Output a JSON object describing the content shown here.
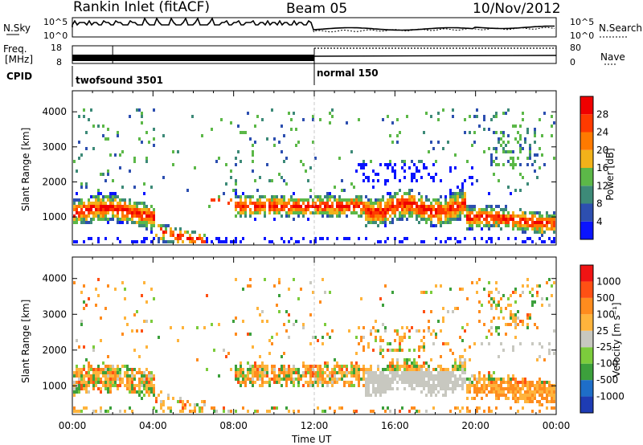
{
  "header": {
    "radar": "Rankin Inlet (fitACF)",
    "beam": "Beam 05",
    "date": "10/Nov/2012"
  },
  "top_panels": {
    "nsky_label": "N.Sky",
    "nsearch_label": "N.Search",
    "n_ticks_left": [
      "10^5",
      "10^0"
    ],
    "n_ticks_right": [
      "10^5",
      "10^0"
    ],
    "freq_label": "Freq.",
    "freq_unit": "[MHz]",
    "freq_ticks": [
      "18",
      "8"
    ],
    "nave_label": "Nave",
    "nave_ticks": [
      "80",
      "0"
    ],
    "cpid_label": "CPID",
    "cpid_modes": [
      "twofsound 3501",
      "normal 150"
    ]
  },
  "chart_data": [
    {
      "type": "heatmap",
      "name": "power-panel",
      "ylabel": "Slant Range [km]",
      "xlabel": "Time UT",
      "x_ticks": [
        "00:00",
        "04:00",
        "08:00",
        "12:00",
        "16:00",
        "20:00",
        "00:00"
      ],
      "y_ticks": [
        "1000",
        "2000",
        "3000",
        "4000"
      ],
      "ylim": [
        200,
        4600
      ],
      "colorbar_label": "Power [dB]",
      "colorbar_ticks": [
        "4",
        "8",
        "12",
        "16",
        "20",
        "24",
        "28"
      ],
      "colorbar_colors": [
        "#0a14ff",
        "#2d4fb0",
        "#3d8a78",
        "#5cb848",
        "#f2b21a",
        "#ff7a00",
        "#ff3a00",
        "#f00000"
      ]
    },
    {
      "type": "heatmap",
      "name": "velocity-panel",
      "ylabel": "Slant Range [km]",
      "xlabel": "Time UT",
      "x_ticks": [
        "00:00",
        "04:00",
        "08:00",
        "12:00",
        "16:00",
        "20:00",
        "00:00"
      ],
      "y_ticks": [
        "1000",
        "2000",
        "3000",
        "4000"
      ],
      "ylim": [
        200,
        4600
      ],
      "colorbar_label": "Velocity [m s⁻¹]",
      "colorbar_ticks": [
        "1000",
        "500",
        "100",
        "25",
        "-25",
        "-100",
        "-500",
        "-1000"
      ],
      "colorbar_colors": [
        "#1e3cb4",
        "#1e6ec8",
        "#3ca03c",
        "#7ccc3c",
        "#c8c8c0",
        "#ffb43c",
        "#ff8c1e",
        "#ff5014",
        "#f01414"
      ]
    }
  ]
}
